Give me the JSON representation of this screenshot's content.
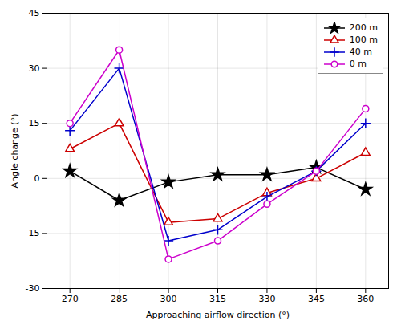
{
  "chart_data": {
    "type": "line",
    "x": [
      270,
      285,
      300,
      315,
      330,
      345,
      360
    ],
    "series": [
      {
        "name": "200 m",
        "color": "#000000",
        "marker": "star",
        "values": [
          2,
          -6,
          -1,
          1,
          1,
          3,
          -3
        ]
      },
      {
        "name": "100 m",
        "color": "#cc0000",
        "marker": "triangle",
        "values": [
          8,
          15,
          -12,
          -11,
          -4,
          0,
          7
        ]
      },
      {
        "name": "40 m",
        "color": "#0000cc",
        "marker": "plus",
        "values": [
          13,
          30,
          -17,
          -14,
          -5,
          2,
          15
        ]
      },
      {
        "name": "0 m",
        "color": "#cc00cc",
        "marker": "circle",
        "values": [
          15,
          35,
          -22,
          -17,
          -7,
          2,
          19
        ]
      }
    ],
    "xlabel": "Approaching airflow direction (°)",
    "ylabel": "Angle change (°)",
    "xlim": [
      263,
      367
    ],
    "ylim": [
      -30,
      45
    ],
    "xticks": [
      270,
      285,
      300,
      315,
      330,
      345,
      360
    ],
    "yticks": [
      -30,
      -15,
      0,
      15,
      30,
      45
    ],
    "grid": true,
    "legend": "upper right"
  }
}
